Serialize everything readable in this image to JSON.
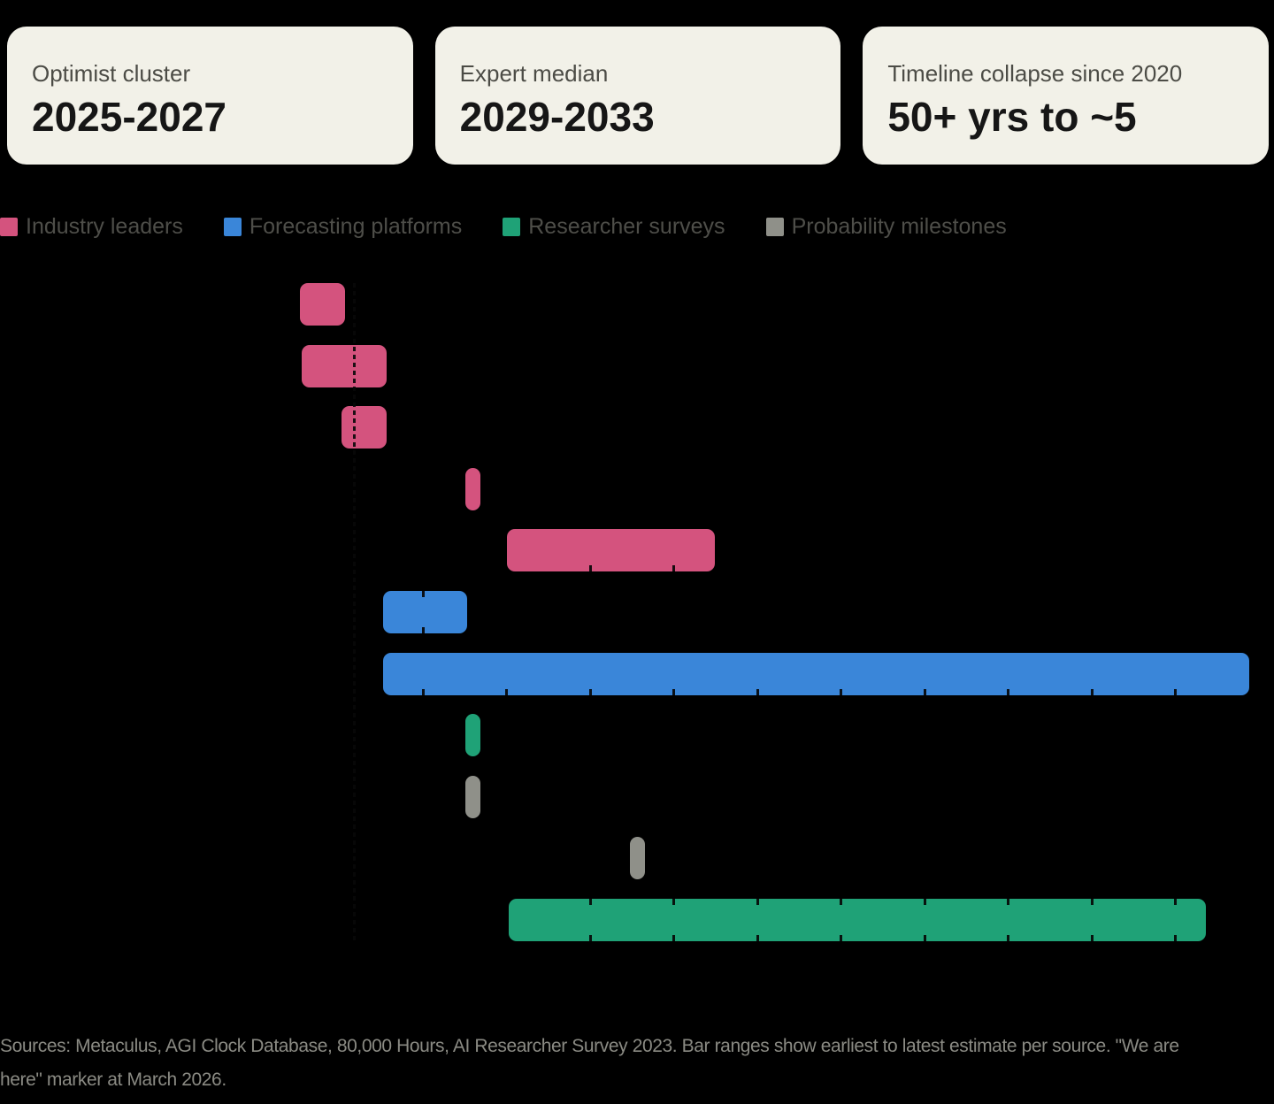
{
  "cards": [
    {
      "label": "Optimist cluster",
      "value": "2025-2027"
    },
    {
      "label": "Expert median",
      "value": "2029-2033"
    },
    {
      "label": "Timeline collapse since 2020",
      "value": "50+ yrs to ~5"
    }
  ],
  "legend": [
    {
      "label": "Industry leaders",
      "color": "#d4537e"
    },
    {
      "label": "Forecasting platforms",
      "color": "#3a86d9"
    },
    {
      "label": "Researcher surveys",
      "color": "#1fa277"
    },
    {
      "label": "Probability milestones",
      "color": "#8f9089"
    }
  ],
  "footer": {
    "lines": [
      "Sources: Metaculus, AGI Clock Database, 80,000 Hours, AI Researcher Survey 2023. Bar ranges show earliest to latest estimate per source. \"We are",
      "here\" marker at March 2026."
    ]
  },
  "chart_data": {
    "type": "bar",
    "orientation": "horizontal-range",
    "title": "",
    "xlabel": "",
    "ylabel": "",
    "x_unit": "year",
    "axis": {
      "x_range_years": [
        2022,
        2037.2
      ],
      "tick_years": [
        2027,
        2028,
        2029,
        2030,
        2031,
        2032,
        2033,
        2034,
        2035,
        2036
      ],
      "tick_labels_visible": false,
      "row_labels_visible": false,
      "grid": false
    },
    "marker": {
      "year": 2026.17,
      "label": "We are here",
      "note": "March 2026",
      "style": "dashed-dark"
    },
    "rows": [
      {
        "legend_index": 0,
        "group": "Industry leaders",
        "start_year": 2025.52,
        "end_year": 2026.06,
        "ticks": "none"
      },
      {
        "legend_index": 0,
        "group": "Industry leaders",
        "start_year": 2025.55,
        "end_year": 2026.56,
        "ticks": "none"
      },
      {
        "legend_index": 0,
        "group": "Industry leaders",
        "start_year": 2026.02,
        "end_year": 2026.56,
        "ticks": "none"
      },
      {
        "legend_index": 0,
        "group": "Industry leaders",
        "start_year": 2027.5,
        "end_year": 2027.68,
        "ticks": "none"
      },
      {
        "legend_index": 0,
        "group": "Industry leaders",
        "start_year": 2028.0,
        "end_year": 2030.49,
        "ticks": "bottom"
      },
      {
        "legend_index": 1,
        "group": "Forecasting platforms",
        "start_year": 2026.52,
        "end_year": 2027.53,
        "ticks": "both"
      },
      {
        "legend_index": 1,
        "group": "Forecasting platforms",
        "start_year": 2026.52,
        "end_year": 2036.88,
        "ticks": "bottom"
      },
      {
        "legend_index": 2,
        "group": "Researcher surveys",
        "start_year": 2027.5,
        "end_year": 2027.68,
        "ticks": "none"
      },
      {
        "legend_index": 3,
        "group": "Probability milestones",
        "start_year": 2027.5,
        "end_year": 2027.68,
        "ticks": "none"
      },
      {
        "legend_index": 3,
        "group": "Probability milestones",
        "start_year": 2029.47,
        "end_year": 2029.65,
        "ticks": "none"
      },
      {
        "legend_index": 2,
        "group": "Researcher surveys",
        "start_year": 2028.02,
        "end_year": 2036.36,
        "ticks": "both"
      }
    ]
  }
}
